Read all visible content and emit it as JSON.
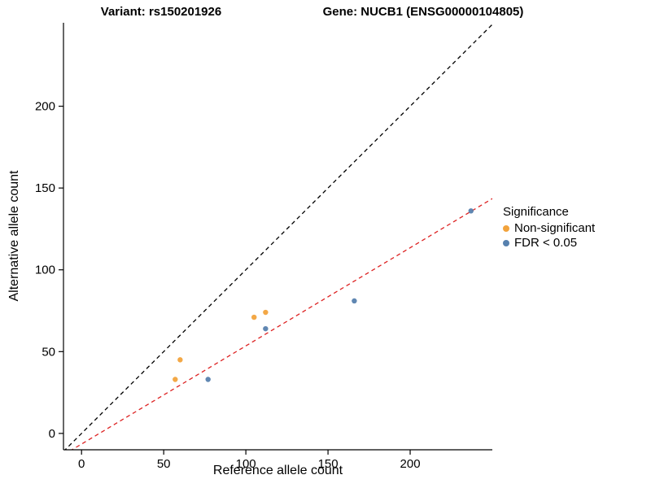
{
  "titles": {
    "left": "Variant: rs150201926",
    "right": "Gene: NUCB1 (ENSG00000104805)"
  },
  "axes": {
    "x_label": "Reference allele count",
    "y_label": "Alternative allele count"
  },
  "legend": {
    "title": "Significance",
    "items": [
      {
        "label": "Non-significant",
        "color": "#F2A33C"
      },
      {
        "label": "FDR < 0.05",
        "color": "#5781AE"
      }
    ]
  },
  "chart_data": {
    "type": "scatter",
    "title": "Variant: rs150201926 / Gene: NUCB1 (ENSG00000104805)",
    "xlabel": "Reference allele count",
    "ylabel": "Alternative allele count",
    "xlim": [
      -11,
      250
    ],
    "ylim": [
      -10,
      251
    ],
    "x_ticks": [
      0,
      50,
      100,
      150,
      200
    ],
    "y_ticks": [
      0,
      50,
      100,
      150,
      200
    ],
    "grid": false,
    "legend_position": "right",
    "series": [
      {
        "name": "Non-significant",
        "color": "#F2A33C",
        "points": [
          [
            57,
            33
          ],
          [
            60,
            45
          ],
          [
            105,
            71
          ],
          [
            112,
            74
          ]
        ]
      },
      {
        "name": "FDR < 0.05",
        "color": "#5781AE",
        "points": [
          [
            77,
            33
          ],
          [
            112,
            64
          ],
          [
            166,
            81
          ],
          [
            237,
            136
          ]
        ]
      }
    ],
    "lines": [
      {
        "name": "identity-line",
        "slope": 1,
        "intercept": 0,
        "color": "#000000",
        "dash": "5,4"
      },
      {
        "name": "fit-line",
        "slope": 0.6,
        "intercept": -6.5,
        "color": "#DD2222",
        "dash": "5,4"
      }
    ]
  }
}
